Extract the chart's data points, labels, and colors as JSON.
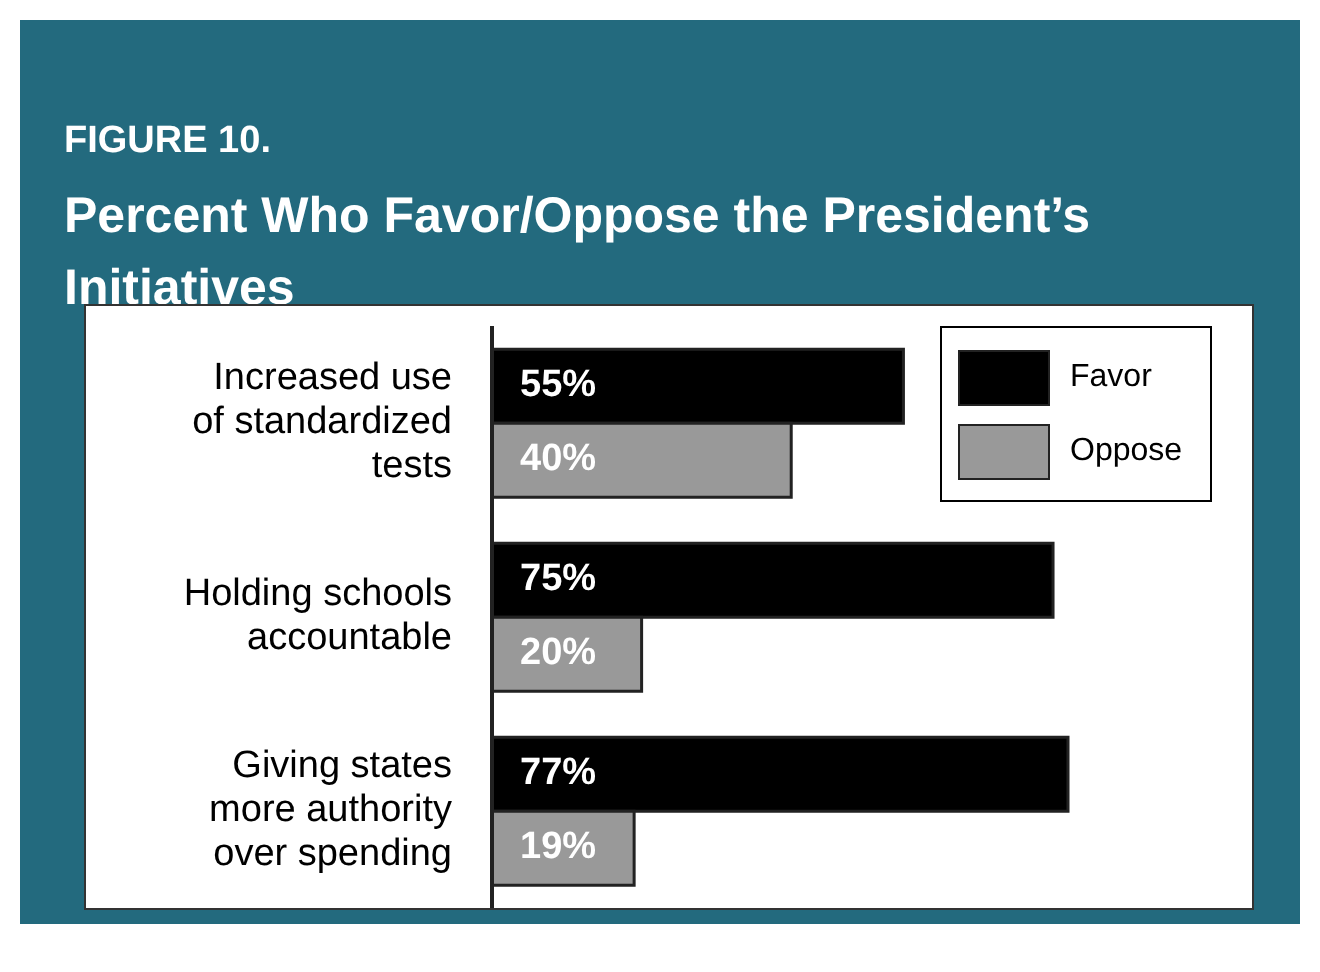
{
  "chart_data": {
    "type": "bar",
    "orientation": "horizontal",
    "title": "FIGURE 10.",
    "subtitle": "Percent Who Favor/Oppose the President’s Initiatives",
    "categories": [
      "Increased use of standardized tests",
      "Holding schools accountable",
      "Giving states more authority over spending"
    ],
    "series": [
      {
        "name": "Favor",
        "color": "#000000",
        "values": [
          55,
          75,
          77
        ],
        "value_labels": [
          "55%",
          "75%",
          "77%"
        ]
      },
      {
        "name": "Oppose",
        "color": "#999999",
        "values": [
          40,
          20,
          19
        ],
        "value_labels": [
          "40%",
          "20%",
          "19%"
        ]
      }
    ],
    "legend": "top right"
  }
}
